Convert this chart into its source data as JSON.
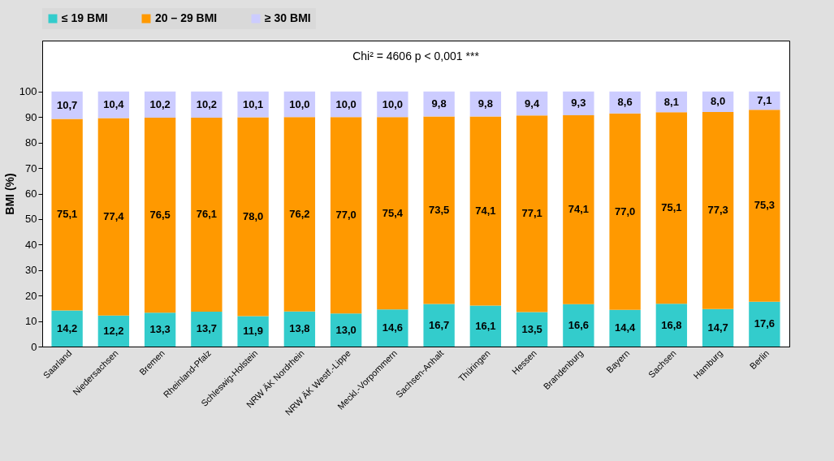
{
  "chart_data": {
    "type": "bar",
    "stacked": true,
    "ylabel": "BMI (%)",
    "annotations": [
      "Chi² = 4606     p < 0,001 ***"
    ],
    "categories": [
      "Saarland",
      "Niedersachsen",
      "Bremen",
      "Rheinland-Pfalz",
      "Schleswig-Holstein",
      "NRW ÄK Nordrhein",
      "NRW ÄK Westf.-Lippe",
      "Meckl.-Vorpommern",
      "Sachsen-Anhalt",
      "Thüringen",
      "Hessen",
      "Brandenburg",
      "Bayern",
      "Sachsen",
      "Hamburg",
      "Berlin"
    ],
    "series": [
      {
        "name": "≤ 19 BMI",
        "color": "#33cccc",
        "values": [
          14.2,
          12.2,
          13.3,
          13.7,
          11.9,
          13.8,
          13.0,
          14.6,
          16.7,
          16.1,
          13.5,
          16.6,
          14.4,
          16.8,
          14.7,
          17.6
        ],
        "value_labels": [
          "14,2",
          "12,2",
          "13,3",
          "13,7",
          "11,9",
          "13,8",
          "13,0",
          "14,6",
          "16,7",
          "16,1",
          "13,5",
          "16,6",
          "14,4",
          "16,8",
          "14,7",
          "17,6"
        ]
      },
      {
        "name": "20 – 29 BMI",
        "color": "#ff9900",
        "values": [
          75.1,
          77.4,
          76.5,
          76.1,
          78.0,
          76.2,
          77.0,
          75.4,
          73.5,
          74.1,
          77.1,
          74.1,
          77.0,
          75.1,
          77.3,
          75.3
        ],
        "value_labels": [
          "75,1",
          "77,4",
          "76,5",
          "76,1",
          "78,0",
          "76,2",
          "77,0",
          "75,4",
          "73,5",
          "74,1",
          "77,1",
          "74,1",
          "77,0",
          "75,1",
          "77,3",
          "75,3"
        ]
      },
      {
        "name": "≥ 30 BMI",
        "color": "#ccccff",
        "values": [
          10.7,
          10.4,
          10.2,
          10.2,
          10.1,
          10.0,
          10.0,
          10.0,
          9.8,
          9.8,
          9.4,
          9.3,
          8.6,
          8.1,
          8.0,
          7.1
        ],
        "value_labels": [
          "10,7",
          "10,4",
          "10,2",
          "10,2",
          "10,1",
          "10,0",
          "10,0",
          "10,0",
          "9,8",
          "9,8",
          "9,4",
          "9,3",
          "8,6",
          "8,1",
          "8,0",
          "7,1"
        ]
      }
    ],
    "ylim": [
      0,
      120
    ],
    "yticks": [
      0,
      10,
      20,
      30,
      40,
      50,
      60,
      70,
      80,
      90,
      100
    ],
    "grid": false,
    "legend": "top"
  }
}
